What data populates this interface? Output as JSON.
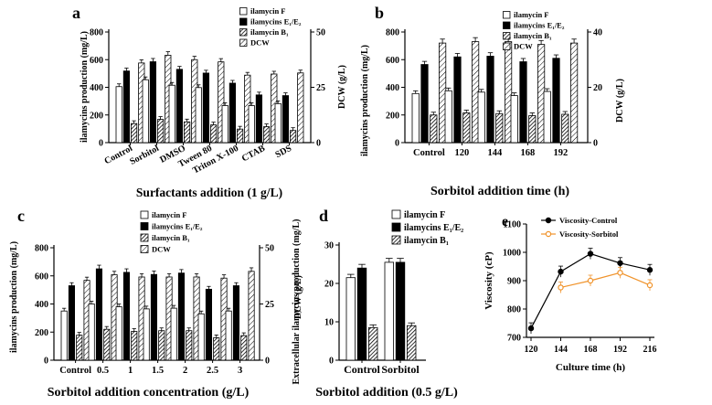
{
  "chart_data": [
    {
      "panel": "a",
      "type": "bar",
      "title": "",
      "xlabel": "Surfactants addition (1 g/L)",
      "ylabel": "ilamycins production (mg/L)",
      "y2label": "DCW (g/L)",
      "ylim": [
        0,
        800
      ],
      "y2lim": [
        0,
        50
      ],
      "yticks": [
        "0",
        "200",
        "400",
        "600",
        "800"
      ],
      "y2ticks": [
        "0",
        "25",
        "50"
      ],
      "categories": [
        "Control",
        "Sorbitol",
        "DMSO",
        "Tween 80",
        "Triton X-100",
        "CTAB",
        "SDS"
      ],
      "legend": [
        "ilamycin F",
        "ilamycins E₁/E₂",
        "ilamycin B₁",
        "DCW"
      ],
      "series": [
        {
          "name": "ilamycin F",
          "values": [
            405,
            455,
            415,
            398,
            268,
            268,
            282
          ]
        },
        {
          "name": "ilamycins E₁/E₂",
          "values": [
            518,
            585,
            530,
            503,
            430,
            345,
            340
          ]
        },
        {
          "name": "ilamycin B₁",
          "values": [
            138,
            168,
            150,
            128,
            98,
            115,
            88
          ]
        },
        {
          "name": "DCW",
          "axis": "right",
          "values": [
            36,
            39.5,
            37.5,
            36.5,
            30.5,
            31,
            31.5
          ]
        }
      ]
    },
    {
      "panel": "b",
      "type": "bar",
      "title": "",
      "xlabel": "Sorbitol addition time (h)",
      "ylabel": "ilamycins production (mg/L)",
      "y2label": "DCW (g/L)",
      "ylim": [
        0,
        800
      ],
      "y2lim": [
        0,
        40
      ],
      "yticks": [
        "0",
        "200",
        "400",
        "600",
        "800"
      ],
      "y2ticks": [
        "0",
        "20",
        "40"
      ],
      "categories": [
        "Control",
        "120",
        "144",
        "168",
        "192"
      ],
      "legend": [
        "ilamycin F",
        "ilamycins E₁/E₂",
        "ilamycin B₁",
        "DCW"
      ],
      "series": [
        {
          "name": "ilamycin F",
          "values": [
            355,
            375,
            365,
            340,
            370
          ]
        },
        {
          "name": "ilamycins E₁/E₂",
          "values": [
            565,
            620,
            625,
            585,
            610
          ]
        },
        {
          "name": "ilamycin B₁",
          "values": [
            200,
            215,
            210,
            195,
            205
          ]
        },
        {
          "name": "DCW",
          "axis": "right",
          "values": [
            36,
            36.5,
            36.5,
            35.5,
            36
          ]
        }
      ]
    },
    {
      "panel": "c",
      "type": "bar",
      "title": "",
      "xlabel": "Sorbitol addition concentration (g/L)",
      "ylabel": "ilamycins production (mg/L)",
      "y2label": "DCW (g/L)",
      "ylim": [
        0,
        800
      ],
      "y2lim": [
        0,
        50
      ],
      "yticks": [
        "0",
        "200",
        "400",
        "600",
        "800"
      ],
      "y2ticks": [
        "0",
        "25",
        "50"
      ],
      "categories": [
        "Control",
        "0.5",
        "1",
        "1.5",
        "2",
        "2.5",
        "3"
      ],
      "legend": [
        "ilamycin F",
        "ilamycins E₁/E₂",
        "ilamycin B₁",
        "DCW"
      ],
      "series": [
        {
          "name": "ilamycin F",
          "values": [
            350,
            400,
            380,
            365,
            370,
            330,
            350
          ]
        },
        {
          "name": "ilamycins E₁/E₂",
          "values": [
            530,
            650,
            625,
            610,
            620,
            505,
            530
          ]
        },
        {
          "name": "ilamycin B₁",
          "values": [
            178,
            220,
            205,
            210,
            210,
            160,
            175
          ]
        },
        {
          "name": "DCW",
          "axis": "right",
          "values": [
            35.5,
            38,
            37,
            37,
            37,
            36.5,
            39.5
          ]
        }
      ]
    },
    {
      "panel": "d",
      "type": "bar",
      "title": "",
      "xlabel": "Sorbitol addition (0.5 g/L)",
      "ylabel": "Extracellular ilamycins production (mg/L)",
      "ylim": [
        0,
        30
      ],
      "yticks": [
        "0",
        "10",
        "20",
        "30"
      ],
      "categories": [
        "Control",
        "Sorbitol"
      ],
      "legend": [
        "ilamycin F",
        "ilamycins E₁/E₂",
        "ilamycin B₁"
      ],
      "series": [
        {
          "name": "ilamycin F",
          "values": [
            21.5,
            25.5
          ]
        },
        {
          "name": "ilamycins E₁/E₂",
          "values": [
            24,
            25.5
          ]
        },
        {
          "name": "ilamycin B₁",
          "values": [
            8.5,
            9
          ]
        }
      ]
    },
    {
      "panel": "e",
      "type": "line",
      "title": "",
      "xlabel": "Culture time (h)",
      "ylabel": "Viscosity (cP)",
      "xlim": [
        120,
        216
      ],
      "ylim": [
        700,
        1100
      ],
      "xticks": [
        "120",
        "144",
        "168",
        "192",
        "216"
      ],
      "yticks": [
        "700",
        "800",
        "900",
        "1000",
        "1100"
      ],
      "legend": [
        "Viscosity-Control",
        "Viscosity-Sorbitol"
      ],
      "series": [
        {
          "name": "Viscosity-Control",
          "color": "#000000",
          "x": [
            120,
            144,
            168,
            192,
            216
          ],
          "y": [
            732,
            932,
            995,
            962,
            938
          ]
        },
        {
          "name": "Viscosity-Sorbitol",
          "color": "#f0932b",
          "x": [
            144,
            168,
            192,
            216
          ],
          "y": [
            876,
            900,
            928,
            884
          ]
        }
      ]
    }
  ]
}
